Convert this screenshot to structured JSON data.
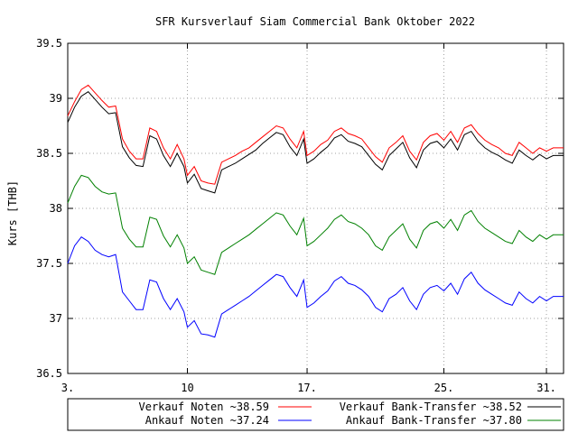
{
  "chart_data": {
    "type": "line",
    "title": "SFR Kursverlauf Siam Commercial Bank Oktober 2022",
    "xlabel": "",
    "ylabel": "Kurs [THB]",
    "xlim": [
      3,
      32
    ],
    "ylim": [
      36.5,
      39.5
    ],
    "yticks": [
      36.5,
      37,
      37.5,
      38,
      38.5,
      39,
      39.5
    ],
    "ytick_labels": [
      "36.5",
      "37",
      "37.5",
      "38",
      "38.5",
      "39",
      "39.5"
    ],
    "xticks": [
      3,
      10,
      17,
      25,
      31
    ],
    "xtick_labels": [
      "3.",
      "10",
      "17.",
      "25.",
      "31."
    ],
    "grid": true,
    "legend_position": "bottom",
    "series": [
      {
        "name": "Verkauf Noten ~38.59",
        "color": "#ff0000",
        "x": [
          3,
          3.4,
          3.8,
          4.2,
          4.6,
          5,
          5.4,
          5.8,
          6.2,
          6.6,
          7,
          7.4,
          7.8,
          8.2,
          8.6,
          9,
          9.4,
          9.8,
          10,
          10.4,
          10.8,
          11.2,
          11.6,
          12,
          12.4,
          12.8,
          13.2,
          13.6,
          14,
          14.4,
          14.8,
          15.2,
          15.6,
          16,
          16.4,
          16.8,
          17,
          17.4,
          17.8,
          18.2,
          18.6,
          19,
          19.4,
          19.8,
          20.2,
          20.6,
          21,
          21.4,
          21.8,
          22.2,
          22.6,
          23,
          23.4,
          23.8,
          24.2,
          24.6,
          25,
          25.4,
          25.8,
          26.2,
          26.6,
          27,
          27.4,
          27.8,
          28.2,
          28.6,
          29,
          29.4,
          29.8,
          30.2,
          30.6,
          31,
          31.4,
          31.8,
          32
        ],
        "values": [
          38.84,
          38.97,
          39.08,
          39.12,
          39.05,
          38.98,
          38.92,
          38.93,
          38.63,
          38.52,
          38.45,
          38.45,
          38.73,
          38.7,
          38.55,
          38.45,
          38.58,
          38.45,
          38.3,
          38.38,
          38.25,
          38.23,
          38.22,
          38.42,
          38.45,
          38.48,
          38.52,
          38.55,
          38.6,
          38.65,
          38.7,
          38.75,
          38.73,
          38.63,
          38.55,
          38.7,
          38.48,
          38.52,
          38.58,
          38.62,
          38.7,
          38.73,
          38.68,
          38.66,
          38.63,
          38.55,
          38.47,
          38.42,
          38.55,
          38.6,
          38.66,
          38.52,
          38.44,
          38.6,
          38.66,
          38.68,
          38.62,
          38.7,
          38.6,
          38.73,
          38.76,
          38.68,
          38.62,
          38.58,
          38.55,
          38.5,
          38.48,
          38.6,
          38.55,
          38.5,
          38.55,
          38.52,
          38.55,
          38.55,
          38.55
        ]
      },
      {
        "name": "Ankauf  Noten ~37.24",
        "color": "#0000ff",
        "x": [
          3,
          3.4,
          3.8,
          4.2,
          4.6,
          5,
          5.4,
          5.8,
          6.2,
          6.6,
          7,
          7.4,
          7.8,
          8.2,
          8.6,
          9,
          9.4,
          9.8,
          10,
          10.4,
          10.8,
          11.2,
          11.6,
          12,
          12.4,
          12.8,
          13.2,
          13.6,
          14,
          14.4,
          14.8,
          15.2,
          15.6,
          16,
          16.4,
          16.8,
          17,
          17.4,
          17.8,
          18.2,
          18.6,
          19,
          19.4,
          19.8,
          20.2,
          20.6,
          21,
          21.4,
          21.8,
          22.2,
          22.6,
          23,
          23.4,
          23.8,
          24.2,
          24.6,
          25,
          25.4,
          25.8,
          26.2,
          26.6,
          27,
          27.4,
          27.8,
          28.2,
          28.6,
          29,
          29.4,
          29.8,
          30.2,
          30.6,
          31,
          31.4,
          31.8,
          32
        ],
        "values": [
          37.5,
          37.66,
          37.74,
          37.7,
          37.62,
          37.58,
          37.56,
          37.58,
          37.24,
          37.16,
          37.08,
          37.08,
          37.35,
          37.33,
          37.18,
          37.08,
          37.18,
          37.06,
          36.92,
          36.98,
          36.86,
          36.85,
          36.83,
          37.04,
          37.08,
          37.12,
          37.16,
          37.2,
          37.25,
          37.3,
          37.35,
          37.4,
          37.38,
          37.28,
          37.2,
          37.35,
          37.1,
          37.14,
          37.2,
          37.25,
          37.34,
          37.38,
          37.32,
          37.3,
          37.26,
          37.2,
          37.1,
          37.06,
          37.18,
          37.22,
          37.28,
          37.16,
          37.08,
          37.22,
          37.28,
          37.3,
          37.25,
          37.32,
          37.22,
          37.36,
          37.42,
          37.32,
          37.26,
          37.22,
          37.18,
          37.14,
          37.12,
          37.24,
          37.18,
          37.14,
          37.2,
          37.16,
          37.2,
          37.2,
          37.2
        ]
      },
      {
        "name": "Verkauf Bank-Transfer ~38.52",
        "color": "#000000",
        "x": [
          3,
          3.4,
          3.8,
          4.2,
          4.6,
          5,
          5.4,
          5.8,
          6.2,
          6.6,
          7,
          7.4,
          7.8,
          8.2,
          8.6,
          9,
          9.4,
          9.8,
          10,
          10.4,
          10.8,
          11.2,
          11.6,
          12,
          12.4,
          12.8,
          13.2,
          13.6,
          14,
          14.4,
          14.8,
          15.2,
          15.6,
          16,
          16.4,
          16.8,
          17,
          17.4,
          17.8,
          18.2,
          18.6,
          19,
          19.4,
          19.8,
          20.2,
          20.6,
          21,
          21.4,
          21.8,
          22.2,
          22.6,
          23,
          23.4,
          23.8,
          24.2,
          24.6,
          25,
          25.4,
          25.8,
          26.2,
          26.6,
          27,
          27.4,
          27.8,
          28.2,
          28.6,
          29,
          29.4,
          29.8,
          30.2,
          30.6,
          31,
          31.4,
          31.8,
          32
        ],
        "values": [
          38.78,
          38.92,
          39.02,
          39.06,
          38.99,
          38.92,
          38.86,
          38.87,
          38.56,
          38.46,
          38.39,
          38.38,
          38.66,
          38.63,
          38.48,
          38.38,
          38.5,
          38.38,
          38.23,
          38.31,
          38.18,
          38.16,
          38.14,
          38.35,
          38.38,
          38.41,
          38.45,
          38.49,
          38.53,
          38.59,
          38.64,
          38.69,
          38.67,
          38.56,
          38.48,
          38.63,
          38.41,
          38.45,
          38.51,
          38.56,
          38.64,
          38.67,
          38.61,
          38.59,
          38.56,
          38.48,
          38.4,
          38.35,
          38.48,
          38.54,
          38.6,
          38.46,
          38.37,
          38.53,
          38.59,
          38.61,
          38.55,
          38.63,
          38.53,
          38.67,
          38.7,
          38.61,
          38.55,
          38.51,
          38.48,
          38.44,
          38.41,
          38.53,
          38.48,
          38.44,
          38.49,
          38.45,
          38.48,
          38.48,
          38.48
        ]
      },
      {
        "name": "Ankauf  Bank-Transfer ~37.80",
        "color": "#008000",
        "x": [
          3,
          3.4,
          3.8,
          4.2,
          4.6,
          5,
          5.4,
          5.8,
          6.2,
          6.6,
          7,
          7.4,
          7.8,
          8.2,
          8.6,
          9,
          9.4,
          9.8,
          10,
          10.4,
          10.8,
          11.2,
          11.6,
          12,
          12.4,
          12.8,
          13.2,
          13.6,
          14,
          14.4,
          14.8,
          15.2,
          15.6,
          16,
          16.4,
          16.8,
          17,
          17.4,
          17.8,
          18.2,
          18.6,
          19,
          19.4,
          19.8,
          20.2,
          20.6,
          21,
          21.4,
          21.8,
          22.2,
          22.6,
          23,
          23.4,
          23.8,
          24.2,
          24.6,
          25,
          25.4,
          25.8,
          26.2,
          26.6,
          27,
          27.4,
          27.8,
          28.2,
          28.6,
          29,
          29.4,
          29.8,
          30.2,
          30.6,
          31,
          31.4,
          31.8,
          32
        ],
        "values": [
          38.05,
          38.2,
          38.3,
          38.28,
          38.2,
          38.15,
          38.13,
          38.14,
          37.82,
          37.72,
          37.65,
          37.65,
          37.92,
          37.9,
          37.75,
          37.65,
          37.76,
          37.64,
          37.5,
          37.56,
          37.44,
          37.42,
          37.4,
          37.6,
          37.64,
          37.68,
          37.72,
          37.76,
          37.81,
          37.86,
          37.91,
          37.96,
          37.94,
          37.84,
          37.76,
          37.91,
          37.66,
          37.7,
          37.76,
          37.82,
          37.9,
          37.94,
          37.88,
          37.86,
          37.82,
          37.76,
          37.66,
          37.62,
          37.74,
          37.8,
          37.86,
          37.72,
          37.64,
          37.8,
          37.86,
          37.88,
          37.82,
          37.9,
          37.8,
          37.94,
          37.98,
          37.88,
          37.82,
          37.78,
          37.74,
          37.7,
          37.68,
          37.8,
          37.74,
          37.7,
          37.76,
          37.72,
          37.76,
          37.76,
          37.76
        ]
      }
    ]
  }
}
